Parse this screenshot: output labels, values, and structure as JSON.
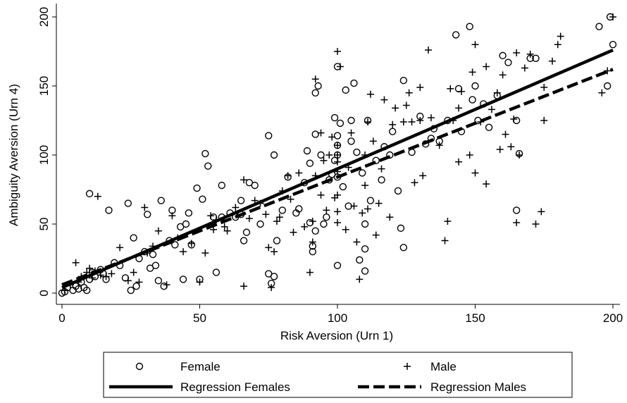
{
  "chart_data": {
    "type": "scatter",
    "title": "",
    "xlabel": "Risk Aversion (Urn 1)",
    "ylabel": "Ambiguity Aversion (Urn 4)",
    "xlim": [
      0,
      200
    ],
    "ylim": [
      0,
      200
    ],
    "xticks": [
      0,
      50,
      100,
      150,
      200
    ],
    "yticks": [
      0,
      50,
      100,
      150,
      200
    ],
    "grid": false,
    "legend_position": "bottom",
    "series": [
      {
        "name": "Female",
        "kind": "scatter",
        "marker": "circle",
        "color": "#000000",
        "points": [
          [
            0,
            0
          ],
          [
            1,
            1
          ],
          [
            2,
            4
          ],
          [
            4,
            2
          ],
          [
            5,
            5
          ],
          [
            6,
            3
          ],
          [
            7,
            8
          ],
          [
            8,
            4
          ],
          [
            9,
            2
          ],
          [
            10,
            10
          ],
          [
            10,
            72
          ],
          [
            11,
            15
          ],
          [
            12,
            12
          ],
          [
            14,
            17
          ],
          [
            15,
            14
          ],
          [
            16,
            10
          ],
          [
            17,
            60
          ],
          [
            19,
            22
          ],
          [
            21,
            20
          ],
          [
            23,
            11
          ],
          [
            24,
            65
          ],
          [
            25,
            2
          ],
          [
            26,
            40
          ],
          [
            27,
            5
          ],
          [
            28,
            25
          ],
          [
            30,
            30
          ],
          [
            31,
            57
          ],
          [
            32,
            18
          ],
          [
            33,
            28
          ],
          [
            34,
            20
          ],
          [
            35,
            9
          ],
          [
            36,
            67
          ],
          [
            37,
            5
          ],
          [
            39,
            38
          ],
          [
            40,
            60
          ],
          [
            41,
            35
          ],
          [
            43,
            48
          ],
          [
            44,
            10
          ],
          [
            45,
            50
          ],
          [
            46,
            58
          ],
          [
            47,
            35
          ],
          [
            49,
            76
          ],
          [
            50,
            10
          ],
          [
            51,
            68
          ],
          [
            52,
            101
          ],
          [
            53,
            92
          ],
          [
            55,
            55
          ],
          [
            56,
            15
          ],
          [
            58,
            55
          ],
          [
            58,
            78
          ],
          [
            61,
            58
          ],
          [
            63,
            55
          ],
          [
            65,
            57
          ],
          [
            65,
            67
          ],
          [
            66,
            38
          ],
          [
            67,
            44
          ],
          [
            68,
            80
          ],
          [
            70,
            78
          ],
          [
            72,
            50
          ],
          [
            75,
            14
          ],
          [
            75,
            114
          ],
          [
            76,
            7
          ],
          [
            77,
            100
          ],
          [
            77,
            12
          ],
          [
            78,
            38
          ],
          [
            80,
            60
          ],
          [
            82,
            84
          ],
          [
            85,
            58
          ],
          [
            86,
            61
          ],
          [
            88,
            80
          ],
          [
            89,
            103
          ],
          [
            90,
            51
          ],
          [
            90,
            94
          ],
          [
            91,
            34
          ],
          [
            91,
            30
          ],
          [
            92,
            45
          ],
          [
            92,
            115
          ],
          [
            92,
            145
          ],
          [
            93,
            150
          ],
          [
            94,
            100
          ],
          [
            95,
            50
          ],
          [
            96,
            55
          ],
          [
            97,
            82
          ],
          [
            98,
            86
          ],
          [
            99,
            96
          ],
          [
            99,
            127
          ],
          [
            100,
            20
          ],
          [
            100,
            84
          ],
          [
            100,
            100
          ],
          [
            100,
            107
          ],
          [
            100,
            114
          ],
          [
            100,
            164
          ],
          [
            101,
            123
          ],
          [
            102,
            77
          ],
          [
            103,
            147
          ],
          [
            104,
            63
          ],
          [
            105,
            110
          ],
          [
            105,
            125
          ],
          [
            106,
            152
          ],
          [
            107,
            102
          ],
          [
            108,
            24
          ],
          [
            109,
            87
          ],
          [
            110,
            32
          ],
          [
            110,
            50
          ],
          [
            110,
            16
          ],
          [
            111,
            125
          ],
          [
            112,
            67
          ],
          [
            114,
            96
          ],
          [
            116,
            82
          ],
          [
            117,
            106
          ],
          [
            119,
            100
          ],
          [
            120,
            117
          ],
          [
            122,
            74
          ],
          [
            123,
            47
          ],
          [
            124,
            33
          ],
          [
            124,
            154
          ],
          [
            127,
            102
          ],
          [
            130,
            128
          ],
          [
            132,
            108
          ],
          [
            134,
            112
          ],
          [
            135,
            119
          ],
          [
            137,
            110
          ],
          [
            140,
            125
          ],
          [
            143,
            187
          ],
          [
            144,
            148
          ],
          [
            145,
            117
          ],
          [
            148,
            193
          ],
          [
            149,
            140
          ],
          [
            150,
            150
          ],
          [
            151,
            125
          ],
          [
            153,
            137
          ],
          [
            155,
            120
          ],
          [
            158,
            143
          ],
          [
            160,
            172
          ],
          [
            162,
            167
          ],
          [
            165,
            60
          ],
          [
            165,
            125
          ],
          [
            166,
            101
          ],
          [
            170,
            170
          ],
          [
            172,
            170
          ],
          [
            195,
            193
          ],
          [
            198,
            150
          ],
          [
            199,
            200
          ],
          [
            200,
            180
          ]
        ]
      },
      {
        "name": "Male",
        "kind": "scatter",
        "marker": "plus",
        "color": "#000000",
        "points": [
          [
            1,
            2
          ],
          [
            3,
            6
          ],
          [
            5,
            22
          ],
          [
            6,
            8
          ],
          [
            7,
            12
          ],
          [
            9,
            15
          ],
          [
            10,
            18
          ],
          [
            11,
            11
          ],
          [
            12,
            16
          ],
          [
            13,
            70
          ],
          [
            14,
            13
          ],
          [
            16,
            12
          ],
          [
            18,
            14
          ],
          [
            21,
            33
          ],
          [
            24,
            9
          ],
          [
            26,
            15
          ],
          [
            28,
            8
          ],
          [
            30,
            62
          ],
          [
            31,
            29
          ],
          [
            33,
            34
          ],
          [
            35,
            45
          ],
          [
            38,
            6
          ],
          [
            40,
            56
          ],
          [
            42,
            40
          ],
          [
            44,
            30
          ],
          [
            47,
            36
          ],
          [
            50,
            8
          ],
          [
            52,
            29
          ],
          [
            54,
            56
          ],
          [
            55,
            46
          ],
          [
            56,
            53
          ],
          [
            59,
            48
          ],
          [
            60,
            45
          ],
          [
            63,
            62
          ],
          [
            66,
            5
          ],
          [
            66,
            82
          ],
          [
            68,
            54
          ],
          [
            70,
            67
          ],
          [
            72,
            65
          ],
          [
            74,
            57
          ],
          [
            75,
            33
          ],
          [
            76,
            4
          ],
          [
            77,
            30
          ],
          [
            78,
            52
          ],
          [
            79,
            55
          ],
          [
            80,
            74
          ],
          [
            82,
            85
          ],
          [
            83,
            68
          ],
          [
            84,
            44
          ],
          [
            86,
            87
          ],
          [
            88,
            48
          ],
          [
            90,
            15
          ],
          [
            91,
            52
          ],
          [
            91,
            37
          ],
          [
            92,
            85
          ],
          [
            92,
            155
          ],
          [
            94,
            71
          ],
          [
            94,
            116
          ],
          [
            95,
            96
          ],
          [
            96,
            60
          ],
          [
            97,
            100
          ],
          [
            98,
            113
          ],
          [
            99,
            69
          ],
          [
            100,
            51
          ],
          [
            100,
            59
          ],
          [
            100,
            71
          ],
          [
            100,
            88
          ],
          [
            100,
            95
          ],
          [
            100,
            100
          ],
          [
            100,
            107
          ],
          [
            100,
            175
          ],
          [
            101,
            164
          ],
          [
            103,
            46
          ],
          [
            104,
            91
          ],
          [
            105,
            116
          ],
          [
            106,
            63
          ],
          [
            107,
            37
          ],
          [
            108,
            10
          ],
          [
            109,
            58
          ],
          [
            110,
            78
          ],
          [
            110,
            100
          ],
          [
            111,
            124
          ],
          [
            111,
            61
          ],
          [
            112,
            144
          ],
          [
            113,
            110
          ],
          [
            114,
            42
          ],
          [
            115,
            65
          ],
          [
            116,
            90
          ],
          [
            117,
            140
          ],
          [
            119,
            55
          ],
          [
            120,
            122
          ],
          [
            121,
            134
          ],
          [
            124,
            124
          ],
          [
            125,
            136
          ],
          [
            126,
            145
          ],
          [
            127,
            124
          ],
          [
            128,
            80
          ],
          [
            130,
            125
          ],
          [
            130,
            149
          ],
          [
            131,
            85
          ],
          [
            133,
            176
          ],
          [
            134,
            127
          ],
          [
            137,
            107
          ],
          [
            139,
            38
          ],
          [
            140,
            52
          ],
          [
            141,
            148
          ],
          [
            142,
            125
          ],
          [
            144,
            95
          ],
          [
            144,
            134
          ],
          [
            145,
            146
          ],
          [
            148,
            100
          ],
          [
            149,
            160
          ],
          [
            150,
            87
          ],
          [
            150,
            180
          ],
          [
            152,
            124
          ],
          [
            154,
            164
          ],
          [
            154,
            79
          ],
          [
            156,
            133
          ],
          [
            158,
            145
          ],
          [
            159,
            104
          ],
          [
            160,
            158
          ],
          [
            161,
            115
          ],
          [
            163,
            106
          ],
          [
            164,
            126
          ],
          [
            165,
            174
          ],
          [
            165,
            51
          ],
          [
            166,
            100
          ],
          [
            168,
            163
          ],
          [
            170,
            173
          ],
          [
            172,
            50
          ],
          [
            174,
            59
          ],
          [
            175,
            125
          ],
          [
            175,
            149
          ],
          [
            178,
            168
          ],
          [
            180,
            180
          ],
          [
            181,
            186
          ],
          [
            196,
            145
          ],
          [
            198,
            161
          ],
          [
            200,
            200
          ]
        ]
      },
      {
        "name": "Regression Females",
        "kind": "line",
        "dash": "solid",
        "color": "#000000",
        "points": [
          [
            0,
            4
          ],
          [
            200,
            176
          ]
        ]
      },
      {
        "name": "Regression Males",
        "kind": "line",
        "dash": "dashed",
        "color": "#000000",
        "points": [
          [
            0,
            6
          ],
          [
            200,
            162
          ]
        ]
      }
    ]
  }
}
